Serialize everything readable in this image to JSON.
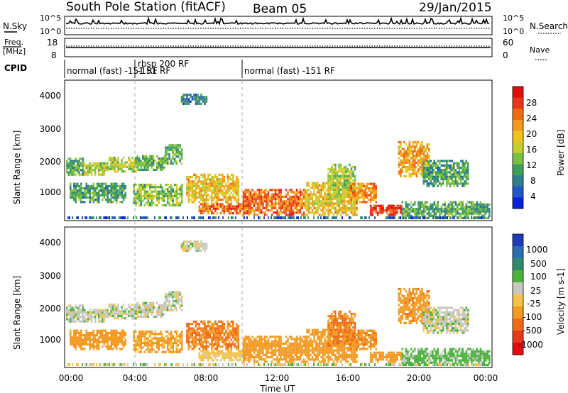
{
  "header": {
    "title": "South Pole Station (fitACF)",
    "beam": "Beam 05",
    "date": "29/Jan/2015"
  },
  "noise_panel": {
    "left_label": "N.Sky",
    "right_label": "N.Search",
    "left_ticks": [
      "10^5",
      "10^0"
    ],
    "right_ticks": [
      "10^5",
      "10^0"
    ]
  },
  "freq_panel": {
    "left_label_line1": "Freq.",
    "left_label_line2": "[MHz]",
    "left_ticks": [
      "18",
      "8"
    ],
    "right_label": "Nave",
    "right_ticks": [
      "60",
      "0"
    ]
  },
  "cpid_panel": {
    "label": "CPID",
    "segments": [
      {
        "start_hour": 0.0,
        "end_hour": 3.9,
        "text": "normal (fast) -151 RF"
      },
      {
        "start_hour": 3.9,
        "end_hour": 9.95,
        "text": "rbsp 200 RF",
        "text2": "-151 RF"
      },
      {
        "start_hour": 9.95,
        "end_hour": 24.0,
        "text": "normal (fast) -151 RF"
      }
    ]
  },
  "x_axis": {
    "label": "Time UT",
    "ticks": [
      "00:00",
      "04:00",
      "08:00",
      "12:00",
      "16:00",
      "20:00",
      "00:00"
    ],
    "range_hours": [
      0,
      24
    ]
  },
  "power_panel": {
    "ylabel": "Slant Range [km]",
    "yticks": [
      "4000",
      "3000",
      "2000",
      "1000"
    ],
    "colorbar_label": "Power [dB]",
    "colorbar_ticks": [
      "28",
      "24",
      "20",
      "16",
      "12",
      "8",
      "4"
    ],
    "colorbar_colors": [
      "#0b1fe0",
      "#2556c7",
      "#2e7f8a",
      "#3f9f5a",
      "#7ac043",
      "#c4cf2b",
      "#f1c21b",
      "#f59a1a",
      "#f06a12",
      "#e8351a",
      "#e00e0e"
    ]
  },
  "velocity_panel": {
    "ylabel": "Slant Range [km]",
    "yticks": [
      "4000",
      "3000",
      "2000",
      "1000"
    ],
    "colorbar_label": "Velocity [m s-1]",
    "colorbar_ticks": [
      "1000",
      "500",
      "100",
      "25",
      "-25",
      "-100",
      "-500",
      "-1000"
    ],
    "colorbar_colors": [
      "#1f3ab8",
      "#2b6bb0",
      "#2f8a6a",
      "#4ab33c",
      "#c8c8c0",
      "#f6c247",
      "#f29a22",
      "#ee6a16",
      "#e8391a",
      "#e40c10"
    ]
  },
  "chart_data": {
    "type": "heatmap",
    "title": "South Pole Station (fitACF)",
    "xlabel": "Time UT",
    "ylabel": "Slant Range [km]",
    "xlim_hours": [
      0,
      24
    ],
    "ylim_km": [
      180,
      4500
    ],
    "panels": [
      "Power [dB]",
      "Velocity [m s-1]"
    ],
    "echo_regions": [
      {
        "t0": 0.0,
        "t1": 1.0,
        "r0": 1550,
        "r1": 2050,
        "power": 10,
        "velocity": 0
      },
      {
        "t0": 1.0,
        "t1": 2.4,
        "r0": 1550,
        "r1": 1950,
        "power": 14,
        "velocity": 0
      },
      {
        "t0": 2.4,
        "t1": 4.0,
        "r0": 1650,
        "r1": 2100,
        "power": 14,
        "velocity": 0
      },
      {
        "t0": 4.0,
        "t1": 5.6,
        "r0": 1700,
        "r1": 2150,
        "power": 11,
        "velocity": 0
      },
      {
        "t0": 5.6,
        "t1": 6.6,
        "r0": 1900,
        "r1": 2500,
        "power": 10,
        "velocity": 0
      },
      {
        "t0": 6.5,
        "t1": 8.0,
        "r0": 3750,
        "r1": 4050,
        "power": 6,
        "velocity": 0
      },
      {
        "t0": 0.2,
        "t1": 3.4,
        "r0": 700,
        "r1": 1300,
        "power": 9,
        "velocity": -200
      },
      {
        "t0": 3.8,
        "t1": 6.6,
        "r0": 600,
        "r1": 1300,
        "power": 12,
        "velocity": -150
      },
      {
        "t0": 6.8,
        "t1": 9.8,
        "r0": 700,
        "r1": 1600,
        "power": 18,
        "velocity": -500
      },
      {
        "t0": 7.5,
        "t1": 10.5,
        "r0": 350,
        "r1": 700,
        "power": 24,
        "velocity": -50
      },
      {
        "t0": 10.0,
        "t1": 13.5,
        "r0": 300,
        "r1": 1100,
        "power": 24,
        "velocity": -300
      },
      {
        "t0": 13.5,
        "t1": 16.5,
        "r0": 300,
        "r1": 1300,
        "power": 18,
        "velocity": -250
      },
      {
        "t0": 14.8,
        "t1": 16.4,
        "r0": 800,
        "r1": 1900,
        "power": 14,
        "velocity": -500
      },
      {
        "t0": 16.0,
        "t1": 17.6,
        "r0": 700,
        "r1": 1300,
        "power": 22,
        "velocity": -400
      },
      {
        "t0": 17.2,
        "t1": 19.0,
        "r0": 300,
        "r1": 600,
        "power": 28,
        "velocity": -200
      },
      {
        "t0": 18.8,
        "t1": 20.6,
        "r0": 1500,
        "r1": 2600,
        "power": 20,
        "velocity": -350
      },
      {
        "t0": 20.2,
        "t1": 22.8,
        "r0": 1200,
        "r1": 2000,
        "power": 9,
        "velocity": 0
      },
      {
        "t0": 19.0,
        "t1": 24.0,
        "r0": 200,
        "r1": 700,
        "power": 10,
        "velocity": 50
      }
    ]
  }
}
